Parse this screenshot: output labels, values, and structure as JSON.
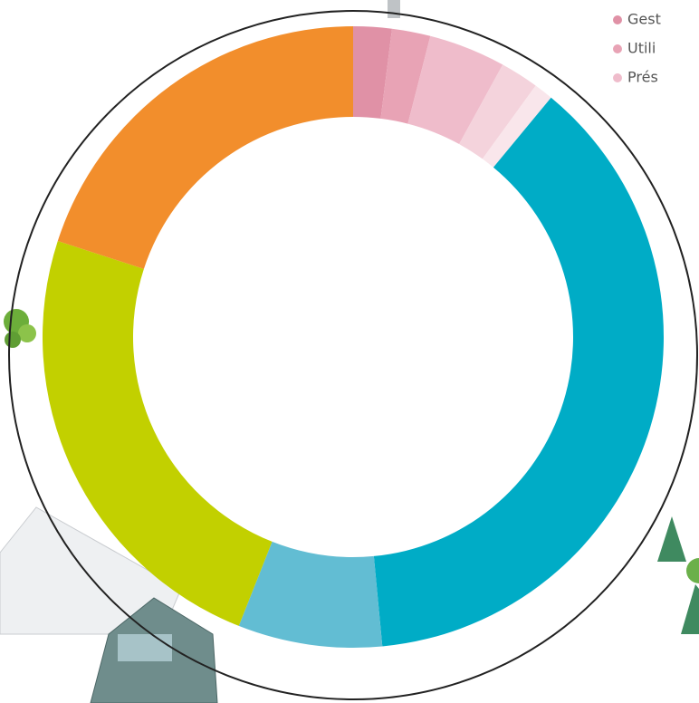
{
  "chart_data": {
    "type": "donut",
    "categories": [
      "Gest",
      "Utili",
      "Prés",
      null,
      null,
      null,
      null,
      null,
      null
    ],
    "values": [
      2,
      2,
      4,
      2,
      1,
      37.5,
      7.5,
      24,
      20
    ],
    "colors": [
      "#e091a6",
      "#e8a3b5",
      "#efbccb",
      "#f4d3dc",
      "#f9e6eb",
      "#00acc6",
      "#62bdd3",
      "#c2d000",
      "#f28e2c"
    ]
  }
}
